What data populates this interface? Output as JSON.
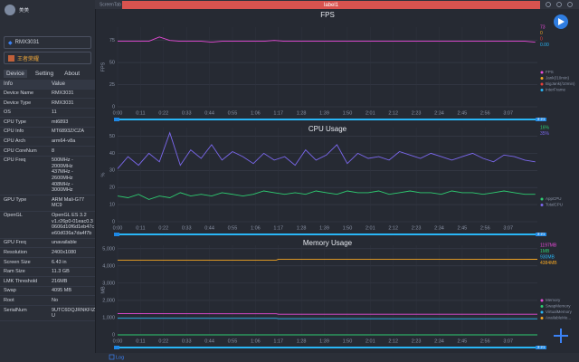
{
  "topbar": {
    "tab_left": "ScreenTab",
    "tab_active": "label1"
  },
  "sidebar": {
    "user": "美美",
    "device": "RMX3031",
    "app": "王者荣耀",
    "tabs": [
      "Device",
      "Setting",
      "About"
    ],
    "table": {
      "header": [
        "Info",
        "Value"
      ],
      "rows": [
        [
          "Device Name",
          "RMX3031"
        ],
        [
          "Device Type",
          "RMX3031"
        ],
        [
          "OS",
          "11"
        ],
        [
          "CPU Type",
          "mt6893"
        ],
        [
          "CPU Info",
          "MT6893Z/CZA"
        ],
        [
          "CPU Arch",
          "arm64-v8a"
        ],
        [
          "CPU CoreNum",
          "8"
        ],
        [
          "CPU Freq",
          "500MHz - 2000MHz\n437MHz - 2600MHz\n408MHz - 3000MHz"
        ],
        [
          "GPU Type",
          "ARM Mali-G77 MC9"
        ],
        [
          "OpenGL",
          "OpenGL ES 3.2\nv1.r26p0-01eac0.3\n0606d10f6d1eb47c\ne60d036a7da4f7b"
        ],
        [
          "GPU Freq",
          "unavailable"
        ],
        [
          "Resolution",
          "2400x1080"
        ],
        [
          "Screen Size",
          "6.43 in"
        ],
        [
          "Ram Size",
          "11.3 GB"
        ],
        [
          "LMK Threshold",
          "216MB"
        ],
        [
          "Swap",
          "4095 MB"
        ],
        [
          "Root",
          "No"
        ],
        [
          "SerialNum",
          "9UTC6DQJRNKFIZ\nU"
        ]
      ]
    }
  },
  "bottombar": {
    "log": "Log"
  },
  "chart_data": [
    {
      "type": "line",
      "title": "FPS",
      "y_label": "FPS",
      "slider_end": "3:21",
      "xlim": [
        0,
        201
      ],
      "ylim": [
        0,
        90
      ],
      "yticks": [
        0,
        25,
        50,
        75
      ],
      "xticks": [
        {
          "value": 0,
          "label": "0:00"
        },
        {
          "value": 11,
          "label": "0:11"
        },
        {
          "value": 22,
          "label": "0:22"
        },
        {
          "value": 33,
          "label": "0:33"
        },
        {
          "value": 44,
          "label": "0:44"
        },
        {
          "value": 55,
          "label": "0:55"
        },
        {
          "value": 66,
          "label": "1:06"
        },
        {
          "value": 77,
          "label": "1:17"
        },
        {
          "value": 88,
          "label": "1:28"
        },
        {
          "value": 99,
          "label": "1:39"
        },
        {
          "value": 110,
          "label": "1:50"
        },
        {
          "value": 121,
          "label": "2:01"
        },
        {
          "value": 132,
          "label": "2:12"
        },
        {
          "value": 143,
          "label": "2:23"
        },
        {
          "value": 154,
          "label": "2:34"
        },
        {
          "value": 165,
          "label": "2:45"
        },
        {
          "value": 176,
          "label": "2:56"
        },
        {
          "value": 187,
          "label": "3:07"
        }
      ],
      "x": [
        0,
        5,
        10,
        15,
        20,
        25,
        30,
        35,
        40,
        45,
        50,
        55,
        60,
        65,
        70,
        75,
        80,
        85,
        90,
        95,
        100,
        105,
        110,
        115,
        120,
        125,
        130,
        135,
        140,
        145,
        150,
        155,
        160,
        165,
        170,
        175,
        180,
        185,
        190,
        195,
        200
      ],
      "series": [
        {
          "name": "FPS",
          "color": "#e84ad8",
          "current_label": "73",
          "values": [
            74,
            74,
            74,
            74,
            79,
            75,
            74,
            74,
            74,
            73,
            74,
            74,
            74,
            74,
            74,
            75,
            74,
            74,
            74,
            74,
            74,
            74,
            74,
            74,
            74,
            74,
            74,
            74,
            74,
            74,
            74,
            74,
            74,
            74,
            74,
            74,
            74,
            74,
            74,
            74,
            73
          ]
        },
        {
          "name": "Jank(/10min)",
          "color": "#f5a623",
          "current_label": "0"
        },
        {
          "name": "BigJank(/10min)",
          "color": "#e8403a",
          "current_label": "0"
        },
        {
          "name": "InterFrame",
          "color": "#29b6f6",
          "current_label": "0.00"
        }
      ]
    },
    {
      "type": "line",
      "title": "CPU Usage",
      "y_label": "%",
      "slider_end": "3:21",
      "xlim": [
        0,
        201
      ],
      "ylim": [
        0,
        55
      ],
      "yticks": [
        0,
        10,
        20,
        30,
        40,
        50
      ],
      "xticks": [
        {
          "value": 0,
          "label": "0:00"
        },
        {
          "value": 11,
          "label": "0:11"
        },
        {
          "value": 22,
          "label": "0:22"
        },
        {
          "value": 33,
          "label": "0:33"
        },
        {
          "value": 44,
          "label": "0:44"
        },
        {
          "value": 55,
          "label": "0:55"
        },
        {
          "value": 66,
          "label": "1:06"
        },
        {
          "value": 77,
          "label": "1:17"
        },
        {
          "value": 88,
          "label": "1:28"
        },
        {
          "value": 99,
          "label": "1:39"
        },
        {
          "value": 110,
          "label": "1:50"
        },
        {
          "value": 121,
          "label": "2:01"
        },
        {
          "value": 132,
          "label": "2:12"
        },
        {
          "value": 143,
          "label": "2:23"
        },
        {
          "value": 154,
          "label": "2:34"
        },
        {
          "value": 165,
          "label": "2:45"
        },
        {
          "value": 176,
          "label": "2:56"
        },
        {
          "value": 187,
          "label": "3:07"
        }
      ],
      "x": [
        0,
        5,
        10,
        15,
        20,
        25,
        30,
        35,
        40,
        45,
        50,
        55,
        60,
        65,
        70,
        75,
        80,
        85,
        90,
        95,
        100,
        105,
        110,
        115,
        120,
        125,
        130,
        135,
        140,
        145,
        150,
        155,
        160,
        165,
        170,
        175,
        180,
        185,
        190,
        195,
        200
      ],
      "series": [
        {
          "name": "AppCPU",
          "color": "#2ecc71",
          "current_label": "16%",
          "values": [
            15,
            14,
            16,
            13,
            15,
            14,
            17,
            15,
            16,
            15,
            17,
            16,
            15,
            16,
            18,
            17,
            16,
            17,
            16,
            18,
            17,
            16,
            18,
            17,
            17,
            18,
            16,
            17,
            18,
            17,
            17,
            16,
            18,
            17,
            17,
            16,
            17,
            18,
            17,
            16,
            16
          ]
        },
        {
          "name": "TotalCPU",
          "color": "#7b68ee",
          "current_label": "35%",
          "values": [
            31,
            38,
            33,
            40,
            35,
            52,
            33,
            42,
            37,
            45,
            36,
            41,
            38,
            34,
            40,
            36,
            38,
            33,
            42,
            36,
            39,
            45,
            34,
            40,
            37,
            38,
            36,
            41,
            39,
            37,
            40,
            38,
            36,
            38,
            40,
            37,
            35,
            39,
            38,
            36,
            35
          ]
        }
      ]
    },
    {
      "type": "line",
      "title": "Memory Usage",
      "y_label": "MB",
      "slider_end": "3:21",
      "xlim": [
        0,
        201
      ],
      "ylim": [
        0,
        5200
      ],
      "yticks": [
        0,
        {
          "value": 1000,
          "label": "1,000"
        },
        {
          "value": 2000,
          "label": "2,000"
        },
        {
          "value": 3000,
          "label": "3,000"
        },
        {
          "value": 4000,
          "label": "4,000"
        },
        {
          "value": 5000,
          "label": "5,000"
        }
      ],
      "xticks": [
        {
          "value": 0,
          "label": "0:00"
        },
        {
          "value": 11,
          "label": "0:11"
        },
        {
          "value": 22,
          "label": "0:22"
        },
        {
          "value": 33,
          "label": "0:33"
        },
        {
          "value": 44,
          "label": "0:44"
        },
        {
          "value": 55,
          "label": "0:55"
        },
        {
          "value": 66,
          "label": "1:06"
        },
        {
          "value": 77,
          "label": "1:17"
        },
        {
          "value": 88,
          "label": "1:28"
        },
        {
          "value": 99,
          "label": "1:39"
        },
        {
          "value": 110,
          "label": "1:50"
        },
        {
          "value": 121,
          "label": "2:01"
        },
        {
          "value": 132,
          "label": "2:12"
        },
        {
          "value": 143,
          "label": "2:23"
        },
        {
          "value": 154,
          "label": "2:34"
        },
        {
          "value": 165,
          "label": "2:45"
        },
        {
          "value": 176,
          "label": "2:56"
        },
        {
          "value": 187,
          "label": "3:07"
        }
      ],
      "x": [
        0,
        76,
        77,
        201
      ],
      "series": [
        {
          "name": "Memory",
          "color": "#e84ad8",
          "current_label": "1197MB",
          "values": [
            1230,
            1225,
            1200,
            1197
          ]
        },
        {
          "name": "SwapMemory",
          "color": "#2ecc71",
          "current_label": "1MB",
          "values": [
            1,
            1,
            1,
            1
          ]
        },
        {
          "name": "VirtualMemory",
          "color": "#29b6f6",
          "current_label": "930MB",
          "values": [
            960,
            955,
            935,
            930
          ]
        },
        {
          "name": "AvailableMe...",
          "color": "#f5a623",
          "current_label": "4384MB",
          "values": [
            4330,
            4340,
            4390,
            4384
          ]
        }
      ]
    }
  ]
}
